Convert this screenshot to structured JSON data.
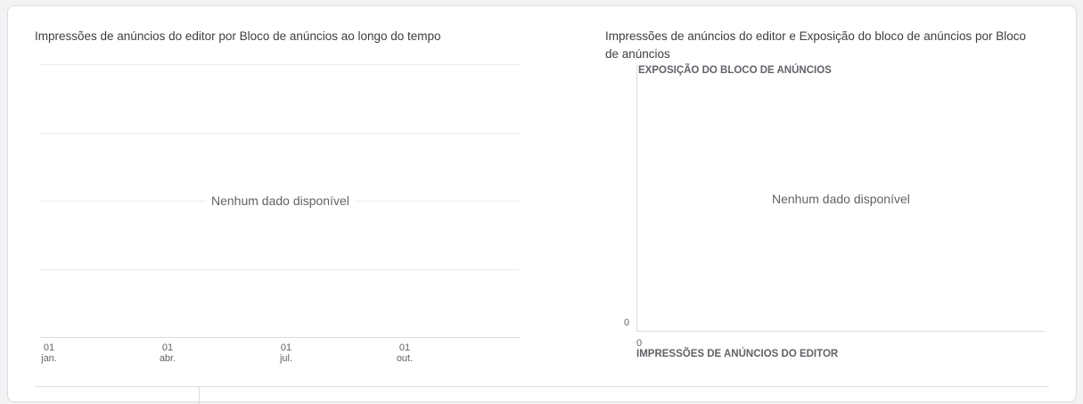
{
  "chart_data": [
    {
      "type": "line",
      "title": "Impressões de anúncios do editor por Bloco de anúncios ao longo do tempo",
      "categories": [
        {
          "day": "01",
          "month": "jan."
        },
        {
          "day": "01",
          "month": "abr."
        },
        {
          "day": "01",
          "month": "jul."
        },
        {
          "day": "01",
          "month": "out."
        }
      ],
      "series": [],
      "grid": true,
      "empty_message": "Nenhum dado disponível"
    },
    {
      "type": "scatter",
      "title": "Impressões de anúncios do editor e Exposição do bloco de anúncios por Bloco de anúncios",
      "ylabel": "EXPOSIÇÃO DO BLOCO DE ANÚNCIOS",
      "xlabel": "IMPRESSÕES DE ANÚNCIOS DO EDITOR",
      "y_zero_label": "0",
      "x_zero_label": "0",
      "series": [],
      "empty_message": "Nenhum dado disponível"
    }
  ]
}
